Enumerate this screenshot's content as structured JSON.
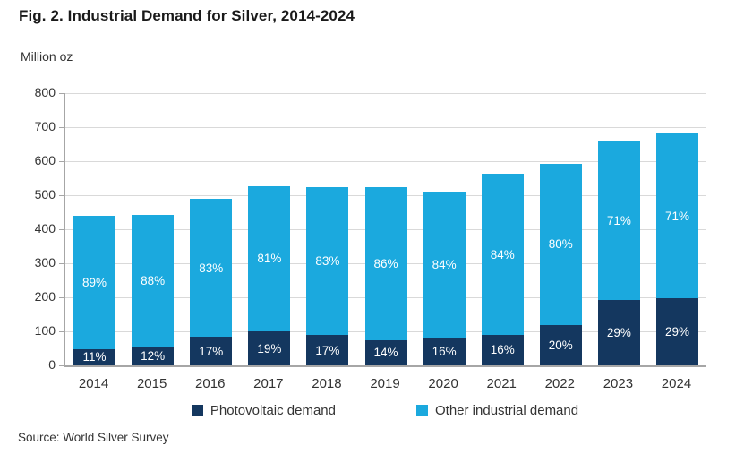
{
  "title": "Fig. 2. Industrial Demand for Silver, 2014-2024",
  "unit_label": "Million oz",
  "source": "Source: World Silver Survey",
  "colors": {
    "photovoltaic": "#14375F",
    "other_industrial": "#1BA9DE",
    "gridline": "#d9d9d9",
    "axis": "#a6a6a6",
    "text": "#333333",
    "bar_label_text": "#ffffff"
  },
  "legend": [
    {
      "label": "Photovoltaic demand",
      "color": "#14375F"
    },
    {
      "label": "Other industrial demand",
      "color": "#1BA9DE"
    }
  ],
  "chart_data": {
    "type": "bar",
    "stacked": true,
    "title": "Fig. 2. Industrial Demand for Silver, 2014-2024",
    "xlabel": "",
    "ylabel": "Million oz",
    "ylim": [
      0,
      800
    ],
    "ytick_interval": 100,
    "yticks": [
      0,
      100,
      200,
      300,
      400,
      500,
      600,
      700,
      800
    ],
    "grid": "horizontal",
    "legend_position": "bottom",
    "categories": [
      "2014",
      "2015",
      "2016",
      "2017",
      "2018",
      "2019",
      "2020",
      "2021",
      "2022",
      "2023",
      "2024"
    ],
    "totals_moz_est": [
      440,
      443,
      490,
      527,
      525,
      525,
      510,
      562,
      593,
      657,
      681
    ],
    "series": [
      {
        "name": "Photovoltaic demand",
        "color": "#14375F",
        "percent_labels": [
          "11%",
          "12%",
          "17%",
          "19%",
          "17%",
          "14%",
          "16%",
          "16%",
          "20%",
          "29%",
          "29%"
        ],
        "percents": [
          11,
          12,
          17,
          19,
          17,
          14,
          16,
          16,
          20,
          29,
          29
        ],
        "values_moz_est": [
          48,
          53,
          83,
          100,
          89,
          74,
          82,
          90,
          119,
          191,
          198
        ]
      },
      {
        "name": "Other industrial demand",
        "color": "#1BA9DE",
        "percent_labels": [
          "89%",
          "88%",
          "83%",
          "81%",
          "83%",
          "86%",
          "84%",
          "84%",
          "80%",
          "71%",
          "71%"
        ],
        "percents": [
          89,
          88,
          83,
          81,
          83,
          86,
          84,
          84,
          80,
          71,
          71
        ],
        "values_moz_est": [
          392,
          390,
          407,
          427,
          436,
          451,
          428,
          472,
          474,
          466,
          483
        ]
      }
    ]
  }
}
